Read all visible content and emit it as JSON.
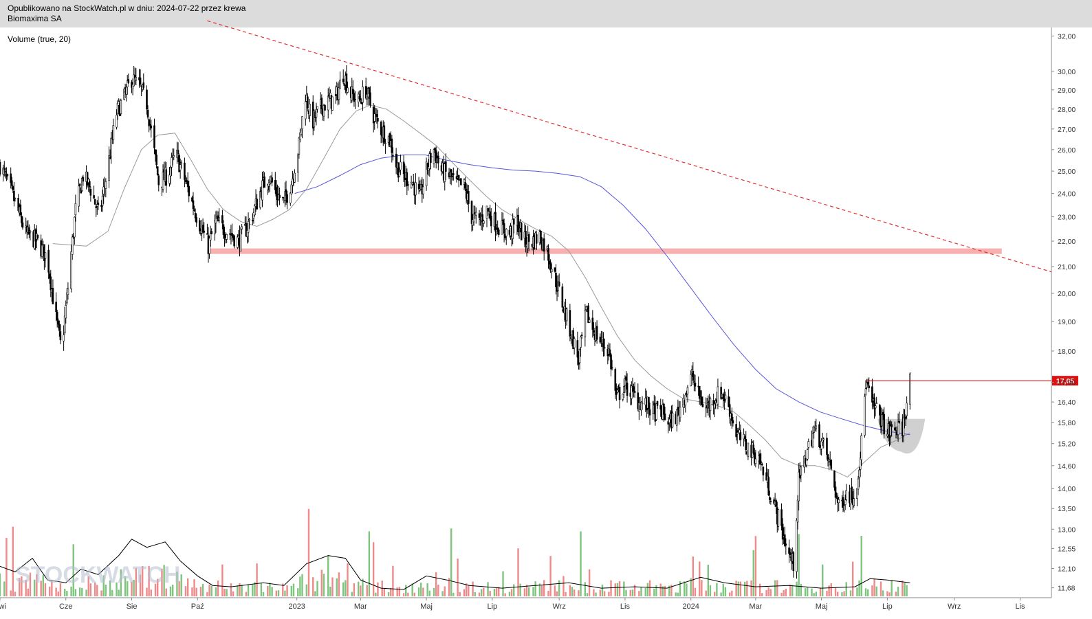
{
  "header": {
    "line1": "Opublikowano na StockWatch.pl w dniu: 2024-07-22 przez krewa",
    "line2": "Biomaxima SA"
  },
  "indicator_label": "Volume (true, 20)",
  "watermark": "STOCKWATCH",
  "colors": {
    "candle": "#000000",
    "ma_short": "#9a9a9a",
    "ma_long": "#5555dd",
    "trendline": "#e03030",
    "support_zone": "#f7b0b0",
    "resistance_line": "#cc0000",
    "price_tag": "#e01010",
    "volume_up": "#7fc47f",
    "volume_down": "#ee8a8a",
    "volume_avg": "#000000",
    "cup": "#c8c8c8"
  },
  "chart_data": {
    "type": "line",
    "title": "",
    "y_axis": {
      "ticks": [
        "11,68",
        "12,10",
        "12,55",
        "13,00",
        "13,50",
        "14,00",
        "14,60",
        "15,20",
        "15,80",
        "16,40",
        "17,00",
        "18,00",
        "19,00",
        "20,00",
        "21,00",
        "22,00",
        "23,00",
        "24,00",
        "25,00",
        "26,00",
        "27,00",
        "28,00",
        "29,00",
        "30,00",
        "32,00"
      ],
      "scale": "log",
      "ylim": [
        11.5,
        32.5
      ]
    },
    "x_axis": {
      "ticks": [
        "Kwi",
        "Cze",
        "Sie",
        "Paź",
        "2023",
        "Mar",
        "Maj",
        "Lip",
        "Wrz",
        "Lis",
        "2024",
        "Mar",
        "Maj",
        "Lip",
        "Wrz",
        "Lis"
      ],
      "range": [
        "2022-04-01",
        "2024-11-30"
      ]
    },
    "last_price_label": "17,05",
    "series": [
      {
        "style": "candlestick",
        "points": [
          [
            "2022-04-01",
            25.3
          ],
          [
            "2022-04-12",
            24.0
          ],
          [
            "2022-04-25",
            22.3
          ],
          [
            "2022-05-05",
            22.0
          ],
          [
            "2022-05-15",
            21.3
          ],
          [
            "2022-05-22",
            19.3
          ],
          [
            "2022-05-28",
            18.0
          ],
          [
            "2022-06-03",
            20.2
          ],
          [
            "2022-06-10",
            23.3
          ],
          [
            "2022-06-17",
            24.8
          ],
          [
            "2022-06-24",
            24.2
          ],
          [
            "2022-07-02",
            23.0
          ],
          [
            "2022-07-10",
            25.2
          ],
          [
            "2022-07-18",
            27.8
          ],
          [
            "2022-07-25",
            28.6
          ],
          [
            "2022-08-01",
            29.6
          ],
          [
            "2022-08-08",
            29.2
          ],
          [
            "2022-08-15",
            28.3
          ],
          [
            "2022-08-20",
            26.5
          ],
          [
            "2022-08-26",
            24.5
          ],
          [
            "2022-09-03",
            24.8
          ],
          [
            "2022-09-11",
            25.8
          ],
          [
            "2022-09-18",
            24.8
          ],
          [
            "2022-09-26",
            23.6
          ],
          [
            "2022-10-04",
            22.6
          ],
          [
            "2022-10-11",
            21.8
          ],
          [
            "2022-10-18",
            22.8
          ],
          [
            "2022-10-25",
            22.5
          ],
          [
            "2022-11-01",
            22.3
          ],
          [
            "2022-11-08",
            22.0
          ],
          [
            "2022-11-15",
            22.5
          ],
          [
            "2022-11-22",
            23.2
          ],
          [
            "2022-11-29",
            24.2
          ],
          [
            "2022-12-06",
            24.8
          ],
          [
            "2022-12-13",
            24.0
          ],
          [
            "2022-12-20",
            23.6
          ],
          [
            "2022-12-27",
            24.5
          ],
          [
            "2023-01-03",
            26.2
          ],
          [
            "2023-01-09",
            28.8
          ],
          [
            "2023-01-15",
            27.3
          ],
          [
            "2023-01-22",
            28.0
          ],
          [
            "2023-01-30",
            28.4
          ],
          [
            "2023-02-06",
            28.5
          ],
          [
            "2023-02-13",
            29.9
          ],
          [
            "2023-02-20",
            28.8
          ],
          [
            "2023-02-27",
            28.4
          ],
          [
            "2023-03-06",
            29.0
          ],
          [
            "2023-03-13",
            27.7
          ],
          [
            "2023-03-20",
            27.0
          ],
          [
            "2023-03-28",
            26.5
          ],
          [
            "2023-04-03",
            25.3
          ],
          [
            "2023-04-10",
            24.8
          ],
          [
            "2023-04-18",
            24.5
          ],
          [
            "2023-04-25",
            23.8
          ],
          [
            "2023-05-02",
            25.2
          ],
          [
            "2023-05-08",
            26.0
          ],
          [
            "2023-05-15",
            25.0
          ],
          [
            "2023-05-22",
            24.8
          ],
          [
            "2023-05-29",
            24.4
          ],
          [
            "2023-06-05",
            24.3
          ],
          [
            "2023-06-12",
            23.0
          ],
          [
            "2023-06-19",
            22.8
          ],
          [
            "2023-06-26",
            23.3
          ],
          [
            "2023-07-03",
            22.8
          ],
          [
            "2023-07-10",
            22.5
          ],
          [
            "2023-07-17",
            22.3
          ],
          [
            "2023-07-24",
            22.8
          ],
          [
            "2023-07-31",
            22.0
          ],
          [
            "2023-08-07",
            22.0
          ],
          [
            "2023-08-14",
            22.2
          ],
          [
            "2023-08-21",
            21.6
          ],
          [
            "2023-08-28",
            20.6
          ],
          [
            "2023-09-05",
            19.5
          ],
          [
            "2023-09-12",
            18.6
          ],
          [
            "2023-09-19",
            17.7
          ],
          [
            "2023-09-26",
            19.3
          ],
          [
            "2023-10-03",
            18.7
          ],
          [
            "2023-10-10",
            18.3
          ],
          [
            "2023-10-17",
            18.0
          ],
          [
            "2023-10-24",
            16.5
          ],
          [
            "2023-10-31",
            16.9
          ],
          [
            "2023-11-07",
            16.7
          ],
          [
            "2023-11-14",
            16.4
          ],
          [
            "2023-11-21",
            16.3
          ],
          [
            "2023-11-28",
            16.1
          ],
          [
            "2023-12-05",
            16.1
          ],
          [
            "2023-12-12",
            15.8
          ],
          [
            "2023-12-19",
            16.0
          ],
          [
            "2023-12-26",
            16.6
          ],
          [
            "2024-01-02",
            17.2
          ],
          [
            "2024-01-08",
            16.6
          ],
          [
            "2024-01-15",
            16.2
          ],
          [
            "2024-01-22",
            16.5
          ],
          [
            "2024-01-29",
            16.7
          ],
          [
            "2024-02-05",
            16.3
          ],
          [
            "2024-02-12",
            15.5
          ],
          [
            "2024-02-19",
            15.2
          ],
          [
            "2024-02-26",
            15.0
          ],
          [
            "2024-03-04",
            14.8
          ],
          [
            "2024-03-11",
            14.2
          ],
          [
            "2024-03-18",
            13.6
          ],
          [
            "2024-03-25",
            13.0
          ],
          [
            "2024-04-01",
            12.4
          ],
          [
            "2024-04-05",
            12.2
          ],
          [
            "2024-04-10",
            14.2
          ],
          [
            "2024-04-17",
            14.9
          ],
          [
            "2024-04-24",
            15.6
          ],
          [
            "2024-05-02",
            15.2
          ],
          [
            "2024-05-10",
            14.5
          ],
          [
            "2024-05-17",
            13.5
          ],
          [
            "2024-05-24",
            13.9
          ],
          [
            "2024-05-31",
            13.8
          ],
          [
            "2024-06-03",
            14.2
          ],
          [
            "2024-06-07",
            15.2
          ],
          [
            "2024-06-11",
            17.0
          ],
          [
            "2024-06-17",
            16.3
          ],
          [
            "2024-06-24",
            16.0
          ],
          [
            "2024-07-01",
            15.5
          ],
          [
            "2024-07-08",
            15.6
          ],
          [
            "2024-07-15",
            15.6
          ],
          [
            "2024-07-22",
            17.05
          ]
        ]
      },
      {
        "style": "ma_short",
        "points": [
          [
            "2022-05-20",
            21.9
          ],
          [
            "2022-06-20",
            21.8
          ],
          [
            "2022-07-10",
            22.4
          ],
          [
            "2022-07-25",
            24.2
          ],
          [
            "2022-08-10",
            26.0
          ],
          [
            "2022-08-25",
            26.7
          ],
          [
            "2022-09-10",
            26.8
          ],
          [
            "2022-09-25",
            25.5
          ],
          [
            "2022-10-10",
            24.2
          ],
          [
            "2022-10-25",
            23.3
          ],
          [
            "2022-11-10",
            22.8
          ],
          [
            "2022-11-25",
            22.6
          ],
          [
            "2022-12-10",
            22.9
          ],
          [
            "2022-12-25",
            23.3
          ],
          [
            "2023-01-10",
            24.2
          ],
          [
            "2023-01-25",
            25.5
          ],
          [
            "2023-02-10",
            27.0
          ],
          [
            "2023-02-25",
            27.9
          ],
          [
            "2023-03-10",
            28.2
          ],
          [
            "2023-03-25",
            28.0
          ],
          [
            "2023-04-10",
            27.4
          ],
          [
            "2023-04-25",
            26.8
          ],
          [
            "2023-05-10",
            26.2
          ],
          [
            "2023-05-25",
            25.4
          ],
          [
            "2023-06-10",
            24.6
          ],
          [
            "2023-06-25",
            23.9
          ],
          [
            "2023-07-10",
            23.3
          ],
          [
            "2023-07-25",
            22.9
          ],
          [
            "2023-08-10",
            22.5
          ],
          [
            "2023-08-25",
            22.2
          ],
          [
            "2023-09-10",
            21.6
          ],
          [
            "2023-09-25",
            20.6
          ],
          [
            "2023-10-10",
            19.5
          ],
          [
            "2023-10-25",
            18.5
          ],
          [
            "2023-11-10",
            17.7
          ],
          [
            "2023-11-25",
            17.2
          ],
          [
            "2023-12-10",
            16.8
          ],
          [
            "2023-12-25",
            16.5
          ],
          [
            "2024-01-10",
            16.4
          ],
          [
            "2024-01-25",
            16.3
          ],
          [
            "2024-02-10",
            16.1
          ],
          [
            "2024-02-25",
            15.7
          ],
          [
            "2024-03-10",
            15.3
          ],
          [
            "2024-03-25",
            14.8
          ],
          [
            "2024-04-10",
            14.6
          ],
          [
            "2024-04-25",
            14.6
          ],
          [
            "2024-05-10",
            14.5
          ],
          [
            "2024-05-25",
            14.3
          ],
          [
            "2024-06-10",
            14.7
          ],
          [
            "2024-06-25",
            15.1
          ],
          [
            "2024-07-10",
            15.3
          ],
          [
            "2024-07-22",
            15.5
          ]
        ]
      },
      {
        "style": "ma_long",
        "points": [
          [
            "2022-12-30",
            24.0
          ],
          [
            "2023-01-20",
            24.3
          ],
          [
            "2023-02-10",
            24.8
          ],
          [
            "2023-03-01",
            25.3
          ],
          [
            "2023-03-20",
            25.6
          ],
          [
            "2023-04-10",
            25.75
          ],
          [
            "2023-04-30",
            25.75
          ],
          [
            "2023-05-20",
            25.5
          ],
          [
            "2023-06-10",
            25.3
          ],
          [
            "2023-07-01",
            25.15
          ],
          [
            "2023-07-20",
            25.05
          ],
          [
            "2023-08-10",
            25.0
          ],
          [
            "2023-08-30",
            24.9
          ],
          [
            "2023-09-20",
            24.75
          ],
          [
            "2023-10-10",
            24.3
          ],
          [
            "2023-10-30",
            23.5
          ],
          [
            "2023-11-20",
            22.5
          ],
          [
            "2023-12-10",
            21.4
          ],
          [
            "2023-12-30",
            20.3
          ],
          [
            "2024-01-20",
            19.2
          ],
          [
            "2024-02-10",
            18.2
          ],
          [
            "2024-03-01",
            17.4
          ],
          [
            "2024-03-20",
            16.8
          ],
          [
            "2024-04-10",
            16.4
          ],
          [
            "2024-04-30",
            16.1
          ],
          [
            "2024-05-20",
            15.9
          ],
          [
            "2024-06-10",
            15.7
          ],
          [
            "2024-06-30",
            15.55
          ],
          [
            "2024-07-22",
            15.45
          ]
        ]
      },
      {
        "style": "volume_average",
        "points": [
          [
            "2022-04-01",
            0.22
          ],
          [
            "2022-04-15",
            0.18
          ],
          [
            "2022-05-01",
            0.28
          ],
          [
            "2022-05-15",
            0.12
          ],
          [
            "2022-06-01",
            0.1
          ],
          [
            "2022-06-15",
            0.2
          ],
          [
            "2022-07-01",
            0.16
          ],
          [
            "2022-07-20",
            0.3
          ],
          [
            "2022-08-01",
            0.42
          ],
          [
            "2022-08-15",
            0.36
          ],
          [
            "2022-09-01",
            0.4
          ],
          [
            "2022-09-15",
            0.26
          ],
          [
            "2022-10-01",
            0.15
          ],
          [
            "2022-10-15",
            0.08
          ],
          [
            "2022-11-01",
            0.07
          ],
          [
            "2022-12-01",
            0.1
          ],
          [
            "2022-12-20",
            0.08
          ],
          [
            "2023-01-10",
            0.24
          ],
          [
            "2023-01-30",
            0.3
          ],
          [
            "2023-02-15",
            0.28
          ],
          [
            "2023-03-01",
            0.12
          ],
          [
            "2023-03-20",
            0.06
          ],
          [
            "2023-04-10",
            0.05
          ],
          [
            "2023-05-01",
            0.15
          ],
          [
            "2023-05-20",
            0.12
          ],
          [
            "2023-06-10",
            0.08
          ],
          [
            "2023-07-10",
            0.06
          ],
          [
            "2023-08-10",
            0.08
          ],
          [
            "2023-09-10",
            0.1
          ],
          [
            "2023-10-10",
            0.06
          ],
          [
            "2023-11-10",
            0.07
          ],
          [
            "2023-12-10",
            0.06
          ],
          [
            "2024-01-10",
            0.14
          ],
          [
            "2024-02-01",
            0.1
          ],
          [
            "2024-03-01",
            0.07
          ],
          [
            "2024-04-01",
            0.08
          ],
          [
            "2024-05-01",
            0.06
          ],
          [
            "2024-06-01",
            0.07
          ],
          [
            "2024-06-15",
            0.13
          ],
          [
            "2024-07-01",
            0.12
          ],
          [
            "2024-07-22",
            0.1
          ]
        ]
      }
    ],
    "overlays": {
      "trendline": {
        "style": "dashed",
        "from": [
          "2022-10-10",
          32.9
        ],
        "to": [
          "2024-11-30",
          20.8
        ]
      },
      "support_zone": {
        "from": "2022-10-10",
        "to": "2024-10-15",
        "price": 21.6
      },
      "resistance_line": {
        "from": "2024-06-12",
        "to": "2024-11-30",
        "price": 17.05
      },
      "cup_pattern": {
        "from": "2024-06-22",
        "to": "2024-08-05",
        "rim": 15.9,
        "bottom": 15.05
      }
    }
  }
}
